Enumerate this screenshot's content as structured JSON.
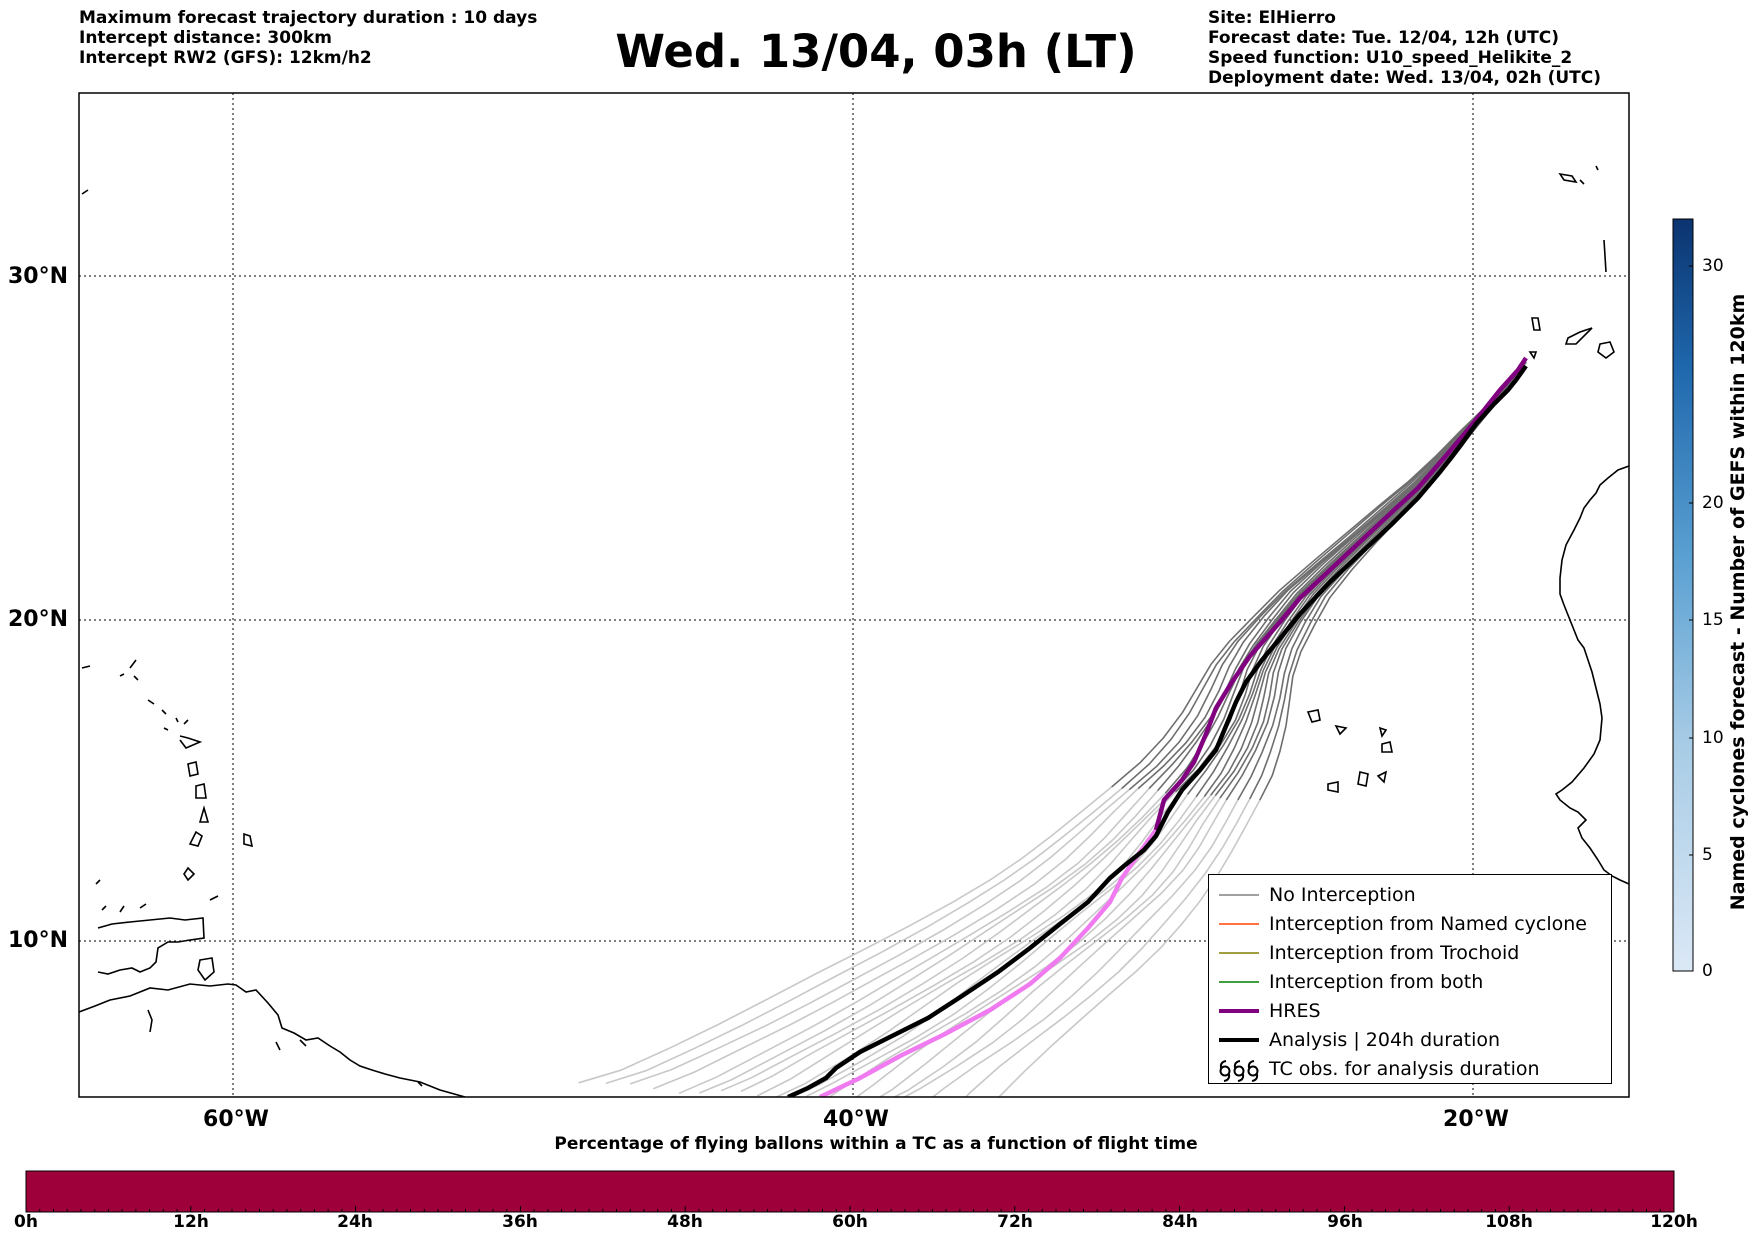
{
  "header": {
    "left_lines": [
      "Maximum forecast trajectory duration : 10 days",
      "Intercept distance: 300km",
      "Intercept RW2 (GFS):  12km/h2"
    ],
    "title": "Wed. 13/04, 03h (LT)",
    "right_lines": [
      "Site: ElHierro",
      "Forecast date: Tue. 12/04, 12h (UTC)",
      "Speed function: U10_speed_Helikite_2",
      "Deployment date: Wed. 13/04, 02h (UTC)"
    ]
  },
  "map": {
    "lat_labels": [
      "30°N",
      "20°N",
      "10°N"
    ],
    "lon_labels": [
      "60°W",
      "40°W",
      "20°W"
    ]
  },
  "legend": {
    "items": [
      {
        "label": "No Interception",
        "color": "#808080"
      },
      {
        "label": "Interception from Named cyclone",
        "color": "#ff4500"
      },
      {
        "label": "Interception from Trochoid",
        "color": "#808000"
      },
      {
        "label": "Interception from both",
        "color": "#008000"
      },
      {
        "label": "HRES",
        "color": "#800080"
      },
      {
        "label": "Analysis | 204h duration",
        "color": "#000000"
      },
      {
        "label": "TC obs. for analysis duration",
        "icon": "cyclone-symbols-icon"
      }
    ]
  },
  "right_colorbar": {
    "label": "Named cyclones forecast - Number of GEFS within 120km",
    "ticks": [
      "0",
      "5",
      "10",
      "15",
      "20",
      "30"
    ]
  },
  "bottom_colorbar": {
    "title": "Percentage of flying ballons within a TC as a function of flight time",
    "color": "#9e003a",
    "ticks": [
      "0h",
      "12h",
      "24h",
      "36h",
      "48h",
      "60h",
      "72h",
      "84h",
      "96h",
      "108h",
      "120h"
    ]
  }
}
